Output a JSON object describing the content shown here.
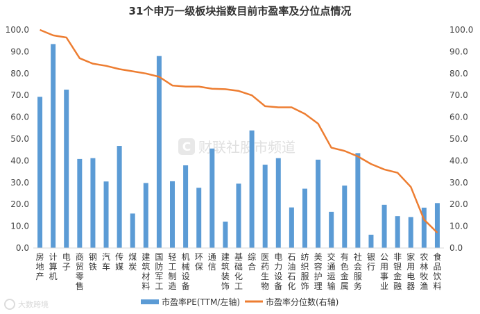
{
  "chart_data": {
    "type": "bar",
    "title": "31个申万一级板块指数目前市盈率及分位点情况",
    "categories": [
      "房地产",
      "计算机",
      "电子",
      "商贸零售",
      "钢铁",
      "汽车",
      "传媒",
      "煤炭",
      "建筑材料",
      "国防军工",
      "轻工制造",
      "机械设备",
      "环保",
      "通信",
      "建筑装饰",
      "基础化工",
      "综合",
      "医药生物",
      "电力设备",
      "石油石化",
      "纺织服饰",
      "美容护理",
      "交通运输",
      "有色金属",
      "社会服务",
      "银行",
      "公用事业",
      "非银金融",
      "家用电器",
      "农林牧渔",
      "食品饮料"
    ],
    "series": [
      {
        "name": "市盈率PE(TTM/左轴)",
        "type": "bar",
        "axis": "left",
        "color": "#5b9bd5",
        "values": [
          69.3,
          93.5,
          72.6,
          40.8,
          41.2,
          30.5,
          46.8,
          15.8,
          29.8,
          88.0,
          30.6,
          37.9,
          27.6,
          45.6,
          12.1,
          29.5,
          53.9,
          38.2,
          41.2,
          18.6,
          27.2,
          40.5,
          16.6,
          28.6,
          43.5,
          6.1,
          19.8,
          14.6,
          14.2,
          18.5,
          20.6
        ]
      },
      {
        "name": "市盈率分位数(右轴)",
        "type": "line",
        "axis": "right",
        "color": "#ed7d31",
        "values": [
          100.0,
          97.5,
          96.5,
          87.0,
          84.5,
          83.5,
          82.0,
          81.0,
          80.0,
          78.5,
          74.5,
          74.0,
          74.0,
          73.0,
          72.8,
          72.0,
          70.0,
          65.0,
          64.5,
          64.5,
          61.5,
          57.0,
          46.0,
          44.5,
          42.0,
          38.5,
          36.0,
          34.5,
          28.0,
          13.0,
          7.0
        ]
      }
    ],
    "y_left": {
      "min": 0,
      "max": 100,
      "step": 10,
      "ticks": [
        "0.0",
        "10.0",
        "20.0",
        "30.0",
        "40.0",
        "50.0",
        "60.0",
        "70.0",
        "80.0",
        "90.0",
        "100.0"
      ]
    },
    "y_right": {
      "min": 0,
      "max": 100,
      "step": 10,
      "ticks": [
        "0.0",
        "10.0",
        "20.0",
        "30.0",
        "40.0",
        "50.0",
        "60.0",
        "70.0",
        "80.0",
        "90.0",
        "100.0"
      ]
    },
    "legend": {
      "placement": "bottom",
      "bar_label": "市盈率PE(TTM/左轴)",
      "line_label": "市盈率分位数(右轴)"
    },
    "grid": false
  },
  "watermark": {
    "text": "财联社股市频道",
    "logo_glyph": "C"
  },
  "footer": {
    "text": "大数跨境"
  }
}
